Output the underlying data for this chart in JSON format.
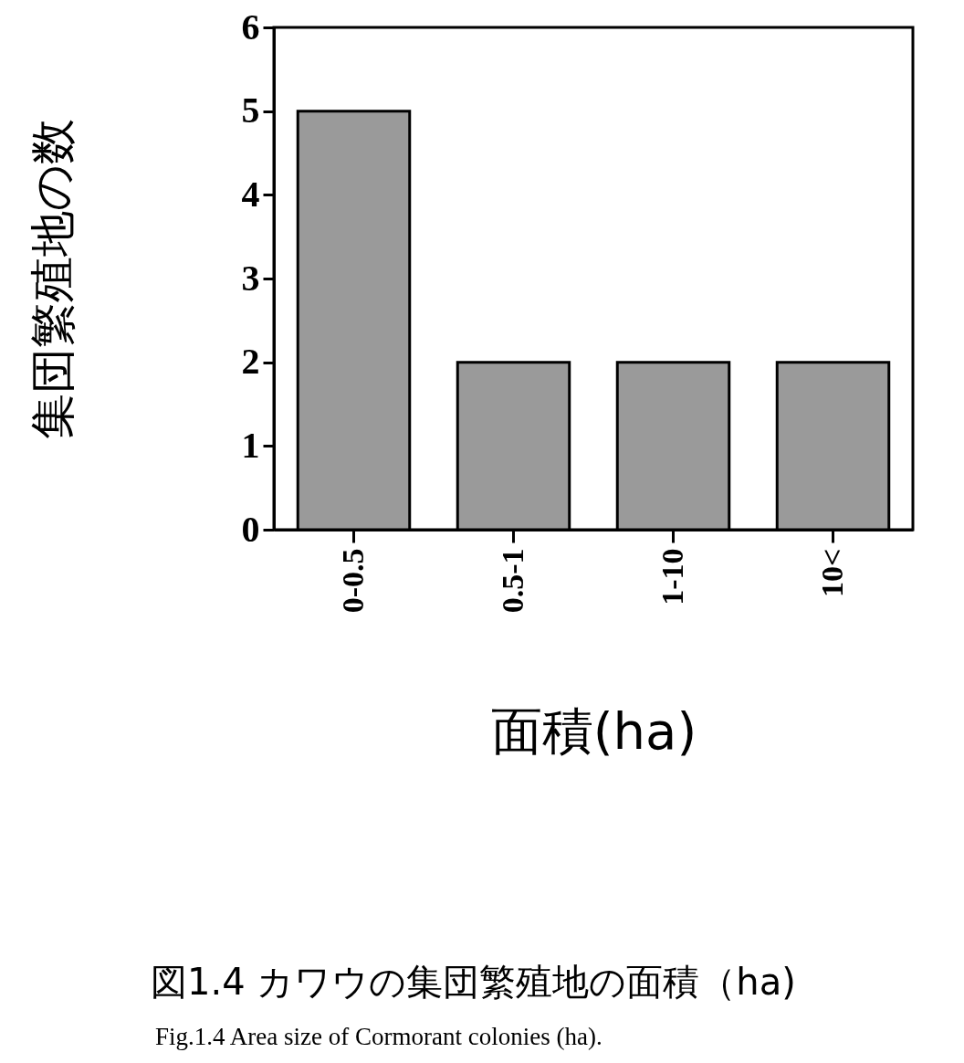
{
  "chart_data": {
    "type": "bar",
    "xlabel": "面積(ha)",
    "ylabel": "集団繁殖地の数",
    "categories": [
      "0-0.5",
      "0.5-1",
      "1-10",
      "10<"
    ],
    "values": [
      5,
      2,
      2,
      2
    ],
    "color": "#9a9a9a",
    "ylim": [
      0,
      6
    ],
    "yticks": [
      0,
      1,
      2,
      3,
      4,
      5,
      6
    ],
    "grid": false,
    "annotations": [
      "図1.4 カワウの集団繁殖地の面積（ha)",
      "Fig.1.4 Area size of Cormorant colonies (ha)."
    ]
  }
}
